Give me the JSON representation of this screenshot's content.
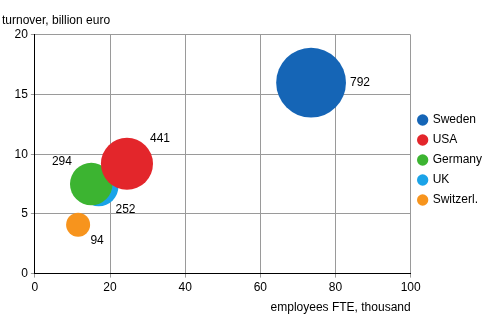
{
  "chart_data": {
    "type": "bubble",
    "x_label": "employees FTE, thousand",
    "y_label": "turnover, billion euro",
    "xlim": [
      0,
      100
    ],
    "xticks": [
      0,
      20,
      40,
      60,
      80,
      100
    ],
    "ylim": [
      0,
      20
    ],
    "yticks": [
      0,
      5,
      10,
      15,
      20
    ],
    "grid": true,
    "legend": "right",
    "data_labels": true,
    "series": [
      {
        "name": "Sweden",
        "color": "#1565b6",
        "x": [
          73.5
        ],
        "values": [
          16
        ],
        "size": [
          792
        ]
      },
      {
        "name": "USA",
        "color": "#e3262b",
        "x": [
          24.5
        ],
        "values": [
          9.2
        ],
        "size": [
          441
        ]
      },
      {
        "name": "Germany",
        "color": "#3cb431",
        "x": [
          15
        ],
        "values": [
          7.5
        ],
        "size": [
          294
        ]
      },
      {
        "name": "UK",
        "color": "#1aa3e8",
        "x": [
          17
        ],
        "values": [
          7.3
        ],
        "size": [
          252
        ]
      },
      {
        "name": "Switzerl.",
        "color": "#f7941d",
        "x": [
          11.5
        ],
        "values": [
          4.1
        ],
        "size": [
          94
        ]
      }
    ]
  }
}
